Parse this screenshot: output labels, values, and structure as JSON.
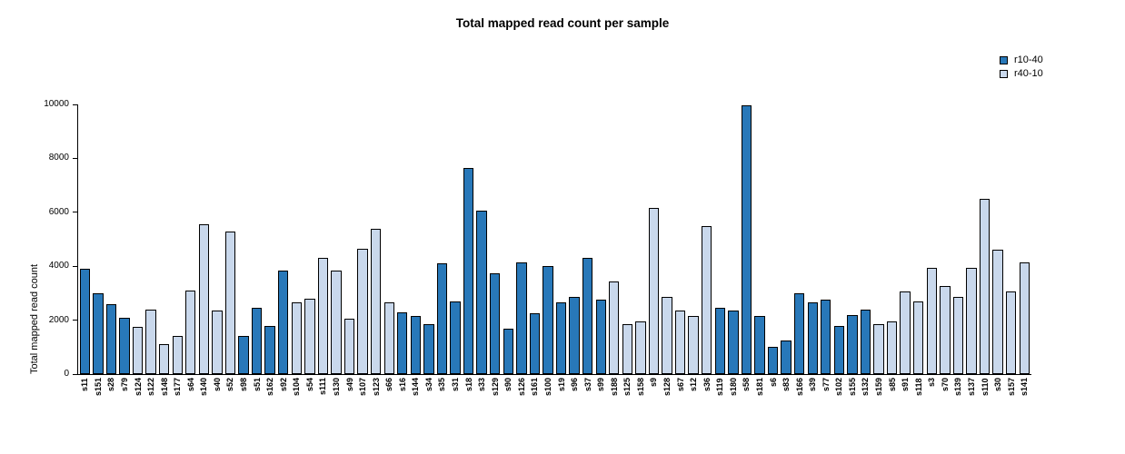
{
  "chart_data": {
    "type": "bar",
    "title": "Total mapped read count per sample",
    "xlabel": "",
    "ylabel": "Total mapped read count",
    "ylim": [
      0,
      10000
    ],
    "yticks": [
      0,
      2000,
      4000,
      6000,
      8000,
      10000
    ],
    "grid": false,
    "legend_position": "top-right",
    "legend": [
      {
        "name": "r10-40",
        "color": "#2878b9"
      },
      {
        "name": "r40-10",
        "color": "#c9d8ec"
      }
    ],
    "bars": [
      {
        "label": "s11",
        "value": 3900,
        "series": "r10-40"
      },
      {
        "label": "s151",
        "value": 3000,
        "series": "r10-40"
      },
      {
        "label": "s28",
        "value": 2600,
        "series": "r10-40"
      },
      {
        "label": "s79",
        "value": 2100,
        "series": "r10-40"
      },
      {
        "label": "s124",
        "value": 1750,
        "series": "r40-10"
      },
      {
        "label": "s122",
        "value": 2400,
        "series": "r40-10"
      },
      {
        "label": "s148",
        "value": 1100,
        "series": "r40-10"
      },
      {
        "label": "s177",
        "value": 1400,
        "series": "r40-10"
      },
      {
        "label": "s64",
        "value": 3100,
        "series": "r40-10"
      },
      {
        "label": "s140",
        "value": 5550,
        "series": "r40-10"
      },
      {
        "label": "s40",
        "value": 2350,
        "series": "r40-10"
      },
      {
        "label": "s52",
        "value": 5300,
        "series": "r40-10"
      },
      {
        "label": "s98",
        "value": 1400,
        "series": "r10-40"
      },
      {
        "label": "s51",
        "value": 2450,
        "series": "r10-40"
      },
      {
        "label": "s162",
        "value": 1800,
        "series": "r10-40"
      },
      {
        "label": "s92",
        "value": 3850,
        "series": "r10-40"
      },
      {
        "label": "s104",
        "value": 2650,
        "series": "r40-10"
      },
      {
        "label": "s54",
        "value": 2800,
        "series": "r40-10"
      },
      {
        "label": "s111",
        "value": 4300,
        "series": "r40-10"
      },
      {
        "label": "s130",
        "value": 3850,
        "series": "r40-10"
      },
      {
        "label": "s49",
        "value": 2050,
        "series": "r40-10"
      },
      {
        "label": "s107",
        "value": 4650,
        "series": "r40-10"
      },
      {
        "label": "s123",
        "value": 5400,
        "series": "r40-10"
      },
      {
        "label": "s66",
        "value": 2650,
        "series": "r40-10"
      },
      {
        "label": "s16",
        "value": 2300,
        "series": "r10-40"
      },
      {
        "label": "s144",
        "value": 2150,
        "series": "r10-40"
      },
      {
        "label": "s34",
        "value": 1850,
        "series": "r10-40"
      },
      {
        "label": "s35",
        "value": 4100,
        "series": "r10-40"
      },
      {
        "label": "s31",
        "value": 2700,
        "series": "r10-40"
      },
      {
        "label": "s18",
        "value": 7650,
        "series": "r10-40"
      },
      {
        "label": "s33",
        "value": 6050,
        "series": "r10-40"
      },
      {
        "label": "s129",
        "value": 3750,
        "series": "r10-40"
      },
      {
        "label": "s90",
        "value": 1700,
        "series": "r10-40"
      },
      {
        "label": "s126",
        "value": 4150,
        "series": "r10-40"
      },
      {
        "label": "s161",
        "value": 2250,
        "series": "r10-40"
      },
      {
        "label": "s100",
        "value": 4000,
        "series": "r10-40"
      },
      {
        "label": "s19",
        "value": 2650,
        "series": "r10-40"
      },
      {
        "label": "s96",
        "value": 2850,
        "series": "r10-40"
      },
      {
        "label": "s37",
        "value": 4300,
        "series": "r10-40"
      },
      {
        "label": "s99",
        "value": 2750,
        "series": "r10-40"
      },
      {
        "label": "s188",
        "value": 3450,
        "series": "r40-10"
      },
      {
        "label": "s125",
        "value": 1850,
        "series": "r40-10"
      },
      {
        "label": "s158",
        "value": 1950,
        "series": "r40-10"
      },
      {
        "label": "s9",
        "value": 6150,
        "series": "r40-10"
      },
      {
        "label": "s128",
        "value": 2850,
        "series": "r40-10"
      },
      {
        "label": "s67",
        "value": 2350,
        "series": "r40-10"
      },
      {
        "label": "s12",
        "value": 2150,
        "series": "r40-10"
      },
      {
        "label": "s36",
        "value": 5500,
        "series": "r40-10"
      },
      {
        "label": "s119",
        "value": 2450,
        "series": "r10-40"
      },
      {
        "label": "s180",
        "value": 2350,
        "series": "r10-40"
      },
      {
        "label": "s58",
        "value": 9950,
        "series": "r10-40"
      },
      {
        "label": "s181",
        "value": 2150,
        "series": "r10-40"
      },
      {
        "label": "s6",
        "value": 1000,
        "series": "r10-40"
      },
      {
        "label": "s83",
        "value": 1250,
        "series": "r10-40"
      },
      {
        "label": "s166",
        "value": 3000,
        "series": "r10-40"
      },
      {
        "label": "s39",
        "value": 2650,
        "series": "r10-40"
      },
      {
        "label": "s77",
        "value": 2750,
        "series": "r10-40"
      },
      {
        "label": "s102",
        "value": 1800,
        "series": "r10-40"
      },
      {
        "label": "s155",
        "value": 2200,
        "series": "r10-40"
      },
      {
        "label": "s132",
        "value": 2400,
        "series": "r10-40"
      },
      {
        "label": "s159",
        "value": 1850,
        "series": "r40-10"
      },
      {
        "label": "s85",
        "value": 1950,
        "series": "r40-10"
      },
      {
        "label": "s91",
        "value": 3050,
        "series": "r40-10"
      },
      {
        "label": "s118",
        "value": 2700,
        "series": "r40-10"
      },
      {
        "label": "s3",
        "value": 3950,
        "series": "r40-10"
      },
      {
        "label": "s70",
        "value": 3250,
        "series": "r40-10"
      },
      {
        "label": "s139",
        "value": 2850,
        "series": "r40-10"
      },
      {
        "label": "s137",
        "value": 3950,
        "series": "r40-10"
      },
      {
        "label": "s110",
        "value": 6500,
        "series": "r40-10"
      },
      {
        "label": "s30",
        "value": 4600,
        "series": "r40-10"
      },
      {
        "label": "s157",
        "value": 3050,
        "series": "r40-10"
      },
      {
        "label": "s141",
        "value": 4150,
        "series": "r40-10"
      }
    ]
  }
}
